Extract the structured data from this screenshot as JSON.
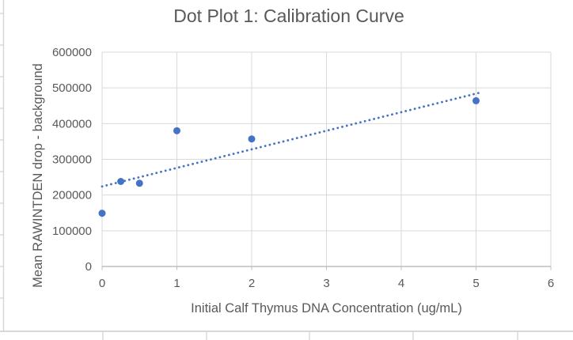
{
  "chart": {
    "title": "Dot Plot 1: Calibration Curve",
    "x_axis_title": "Initial Calf Thymus DNA Concentration (ug/mL)",
    "y_axis_title": "Mean RAWINTDEN drop - background"
  },
  "chart_data": {
    "type": "scatter",
    "title": "Dot Plot 1: Calibration Curve",
    "xlabel": "Initial Calf Thymus DNA Concentration (ug/mL)",
    "ylabel": "Mean RAWINTDEN drop - background",
    "xlim": [
      0,
      6
    ],
    "ylim": [
      0,
      600000
    ],
    "xticks": [
      0,
      1,
      2,
      3,
      4,
      5,
      6
    ],
    "yticks": [
      0,
      100000,
      200000,
      300000,
      400000,
      500000,
      600000
    ],
    "grid": true,
    "legend": false,
    "series": [
      {
        "marker": "circle",
        "color": "#4472C4",
        "points": [
          {
            "x": 0,
            "y": 149000
          },
          {
            "x": 0.25,
            "y": 238000
          },
          {
            "x": 0.5,
            "y": 233000
          },
          {
            "x": 1,
            "y": 380000
          },
          {
            "x": 2,
            "y": 357000
          },
          {
            "x": 5,
            "y": 464000
          }
        ]
      }
    ],
    "trendline": {
      "type": "linear",
      "style": "dotted",
      "color": "#4472C4",
      "slope": 52000,
      "intercept": 224000,
      "x_start": 0,
      "x_end": 5.05
    },
    "colors": {
      "marker": "#4472C4",
      "gridline": "#D9D9D9",
      "axis_line": "#BFBFBF",
      "sheet_line": "#D4D4D4",
      "text": "#595959"
    }
  }
}
